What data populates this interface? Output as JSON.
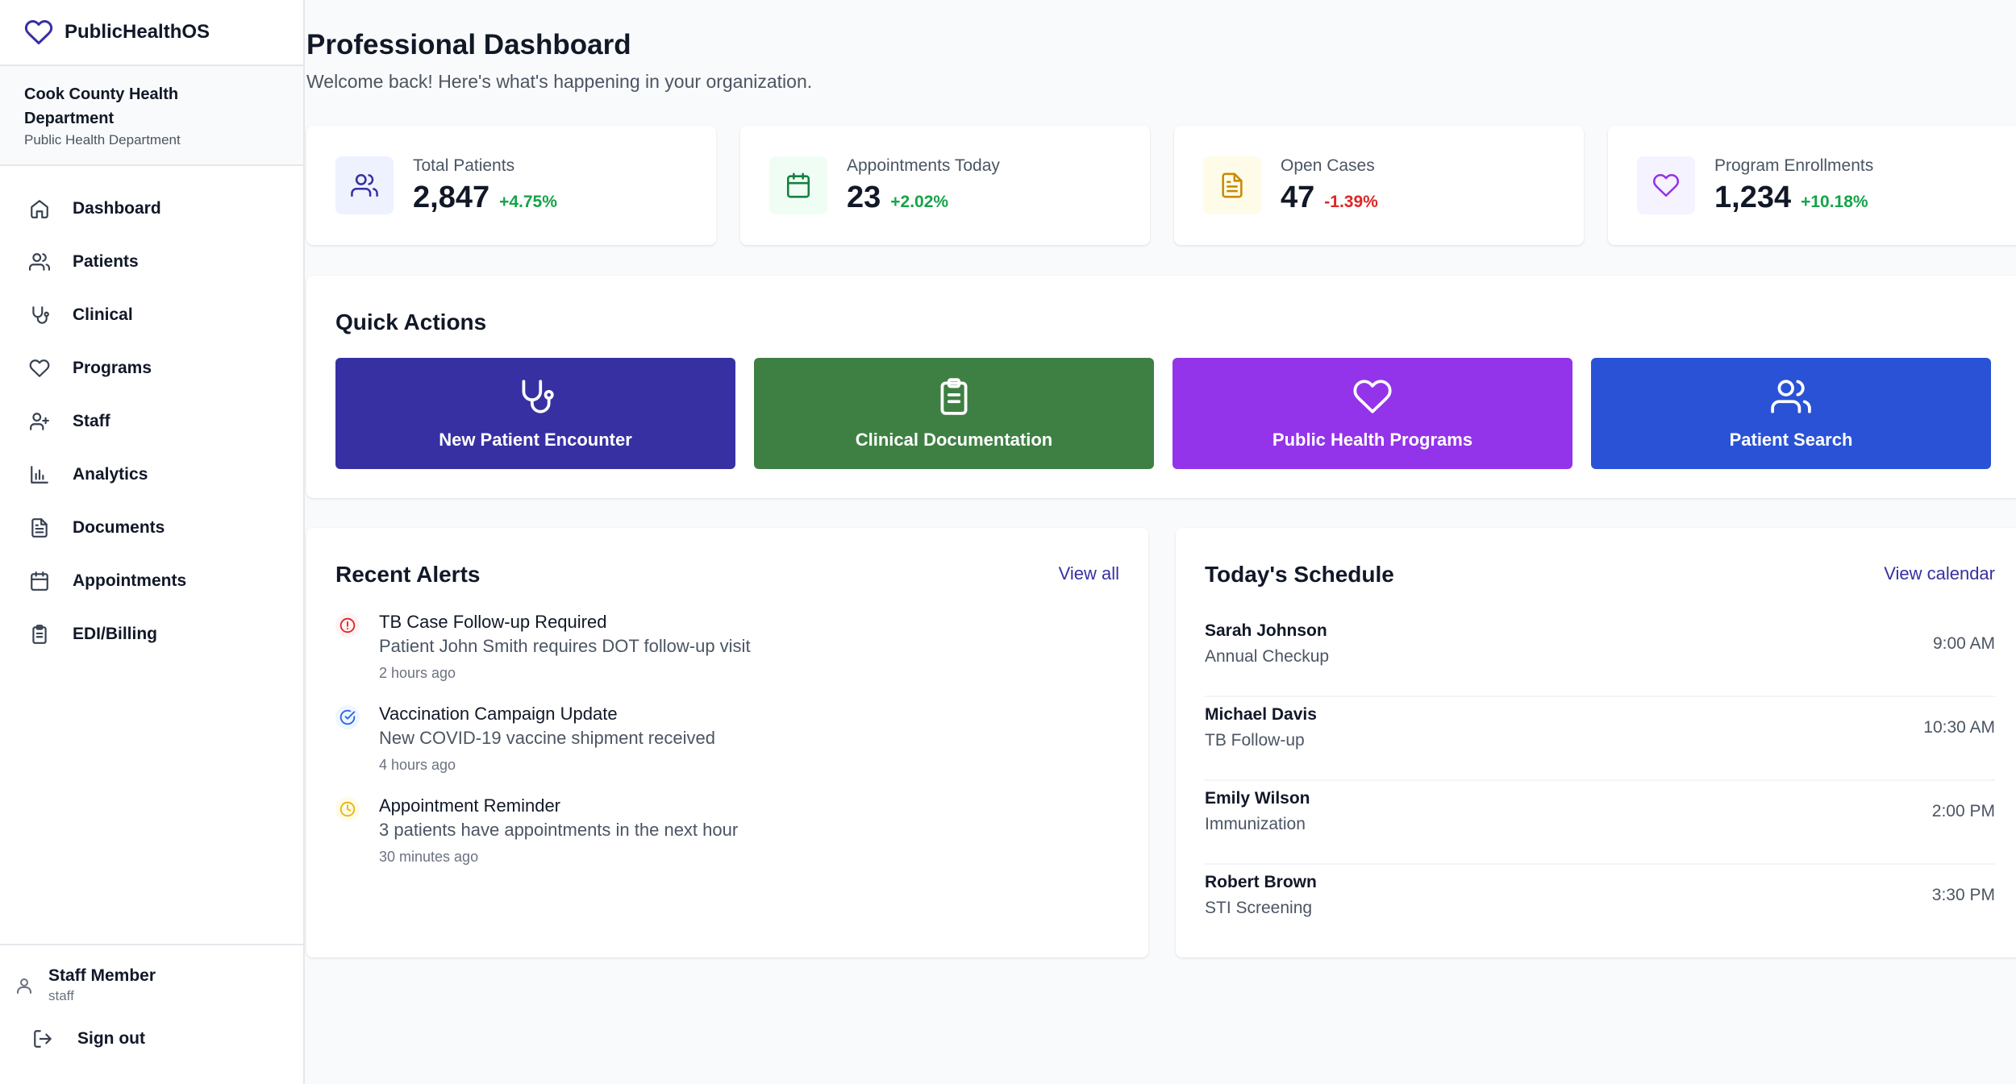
{
  "app": {
    "name": "PublicHealthOS",
    "org_name": "Cook County Health Department",
    "org_type": "Public Health Department"
  },
  "sidebar": {
    "items": [
      {
        "label": "Dashboard",
        "icon": "home-icon"
      },
      {
        "label": "Patients",
        "icon": "users-icon"
      },
      {
        "label": "Clinical",
        "icon": "stethoscope-icon"
      },
      {
        "label": "Programs",
        "icon": "heart-icon"
      },
      {
        "label": "Staff",
        "icon": "user-plus-icon"
      },
      {
        "label": "Analytics",
        "icon": "bar-chart-icon"
      },
      {
        "label": "Documents",
        "icon": "document-icon"
      },
      {
        "label": "Appointments",
        "icon": "calendar-icon"
      },
      {
        "label": "EDI/Billing",
        "icon": "clipboard-icon"
      }
    ],
    "user": {
      "name": "Staff Member",
      "role": "staff"
    },
    "signout_label": "Sign out"
  },
  "header": {
    "title": "Professional Dashboard",
    "subtitle": "Welcome back! Here's what's happening in your organization."
  },
  "stats": [
    {
      "label": "Total Patients",
      "value": "2,847",
      "change": "+4.75%",
      "trend": "up",
      "icon": "users-icon",
      "accent": "#3730a3",
      "bg": "#eef2ff"
    },
    {
      "label": "Appointments Today",
      "value": "23",
      "change": "+2.02%",
      "trend": "up",
      "icon": "calendar-icon",
      "accent": "#15803d",
      "bg": "#f0fdf4"
    },
    {
      "label": "Open Cases",
      "value": "47",
      "change": "-1.39%",
      "trend": "down",
      "icon": "document-icon",
      "accent": "#ca8a04",
      "bg": "#fefce8"
    },
    {
      "label": "Program Enrollments",
      "value": "1,234",
      "change": "+10.18%",
      "trend": "up",
      "icon": "heart-icon",
      "accent": "#9333ea",
      "bg": "#f5f3ff"
    }
  ],
  "quick_actions": {
    "title": "Quick Actions",
    "items": [
      {
        "label": "New Patient Encounter",
        "icon": "stethoscope-icon",
        "color": "#3730a3"
      },
      {
        "label": "Clinical Documentation",
        "icon": "clipboard-icon",
        "color": "#3e8043"
      },
      {
        "label": "Public Health Programs",
        "icon": "heart-icon",
        "color": "#9333ea"
      },
      {
        "label": "Patient Search",
        "icon": "users-icon",
        "color": "#2952d6"
      }
    ]
  },
  "alerts": {
    "title": "Recent Alerts",
    "link": "View all",
    "items": [
      {
        "title": "TB Case Follow-up Required",
        "message": "Patient John Smith requires DOT follow-up visit",
        "time": "2 hours ago",
        "icon": "alert-circle-icon",
        "color": "#dc2626",
        "bg": "#fef2f2"
      },
      {
        "title": "Vaccination Campaign Update",
        "message": "New COVID-19 vaccine shipment received",
        "time": "4 hours ago",
        "icon": "check-circle-icon",
        "color": "#2563eb",
        "bg": "#eff6ff"
      },
      {
        "title": "Appointment Reminder",
        "message": "3 patients have appointments in the next hour",
        "time": "30 minutes ago",
        "icon": "clock-icon",
        "color": "#eab308",
        "bg": "#fefce8"
      }
    ]
  },
  "schedule": {
    "title": "Today's Schedule",
    "link": "View calendar",
    "items": [
      {
        "name": "Sarah Johnson",
        "type": "Annual Checkup",
        "time": "9:00 AM"
      },
      {
        "name": "Michael Davis",
        "type": "TB Follow-up",
        "time": "10:30 AM"
      },
      {
        "name": "Emily Wilson",
        "type": "Immunization",
        "time": "2:00 PM"
      },
      {
        "name": "Robert Brown",
        "type": "STI Screening",
        "time": "3:30 PM"
      }
    ]
  },
  "colors": {
    "up": "#16a34a",
    "down": "#dc2626"
  }
}
